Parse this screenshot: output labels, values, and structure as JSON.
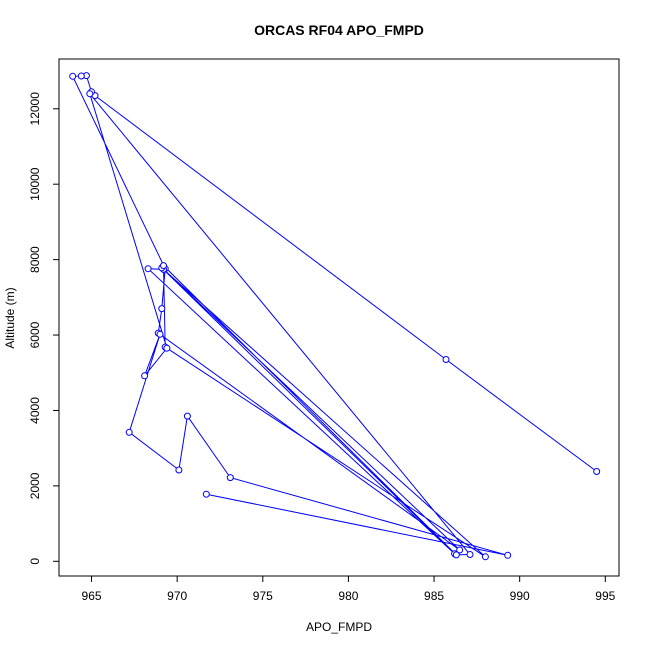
{
  "chart_data": {
    "type": "line",
    "title": "ORCAS RF04 APO_FMPD",
    "xlabel": "APO_FMPD",
    "ylabel": "Altitude (m)",
    "xlim": [
      963.1,
      995.8
    ],
    "ylim": [
      -390,
      13320
    ],
    "xticks": [
      965,
      970,
      975,
      980,
      985,
      990,
      995
    ],
    "yticks": [
      0,
      2000,
      4000,
      6000,
      8000,
      10000,
      12000
    ],
    "grid": false,
    "legend": "none",
    "colors": {
      "series": "#0000ff",
      "axis": "#000000"
    },
    "markers": "open-circle",
    "series": [
      {
        "x": [
          994.5,
          985.7,
          965.2,
          965.0,
          964.7,
          964.4,
          963.9,
          969.3,
          969.1,
          968.9,
          986.5,
          969.2,
          968.3,
          986.2,
          969.1,
          988.0,
          969.3,
          969.2,
          986.3,
          987.1,
          964.9,
          969.4,
          968.1,
          969.0,
          967.2,
          970.1,
          970.6,
          973.1,
          989.3,
          971.7
        ],
        "y": [
          2380,
          5350,
          12350,
          12450,
          12880,
          12870,
          12860,
          7760,
          6700,
          6050,
          300,
          7740,
          7760,
          200,
          7780,
          120,
          5680,
          7840,
          170,
          180,
          12400,
          5650,
          4920,
          6020,
          3420,
          2420,
          3850,
          2220,
          160,
          1780
        ]
      }
    ]
  }
}
